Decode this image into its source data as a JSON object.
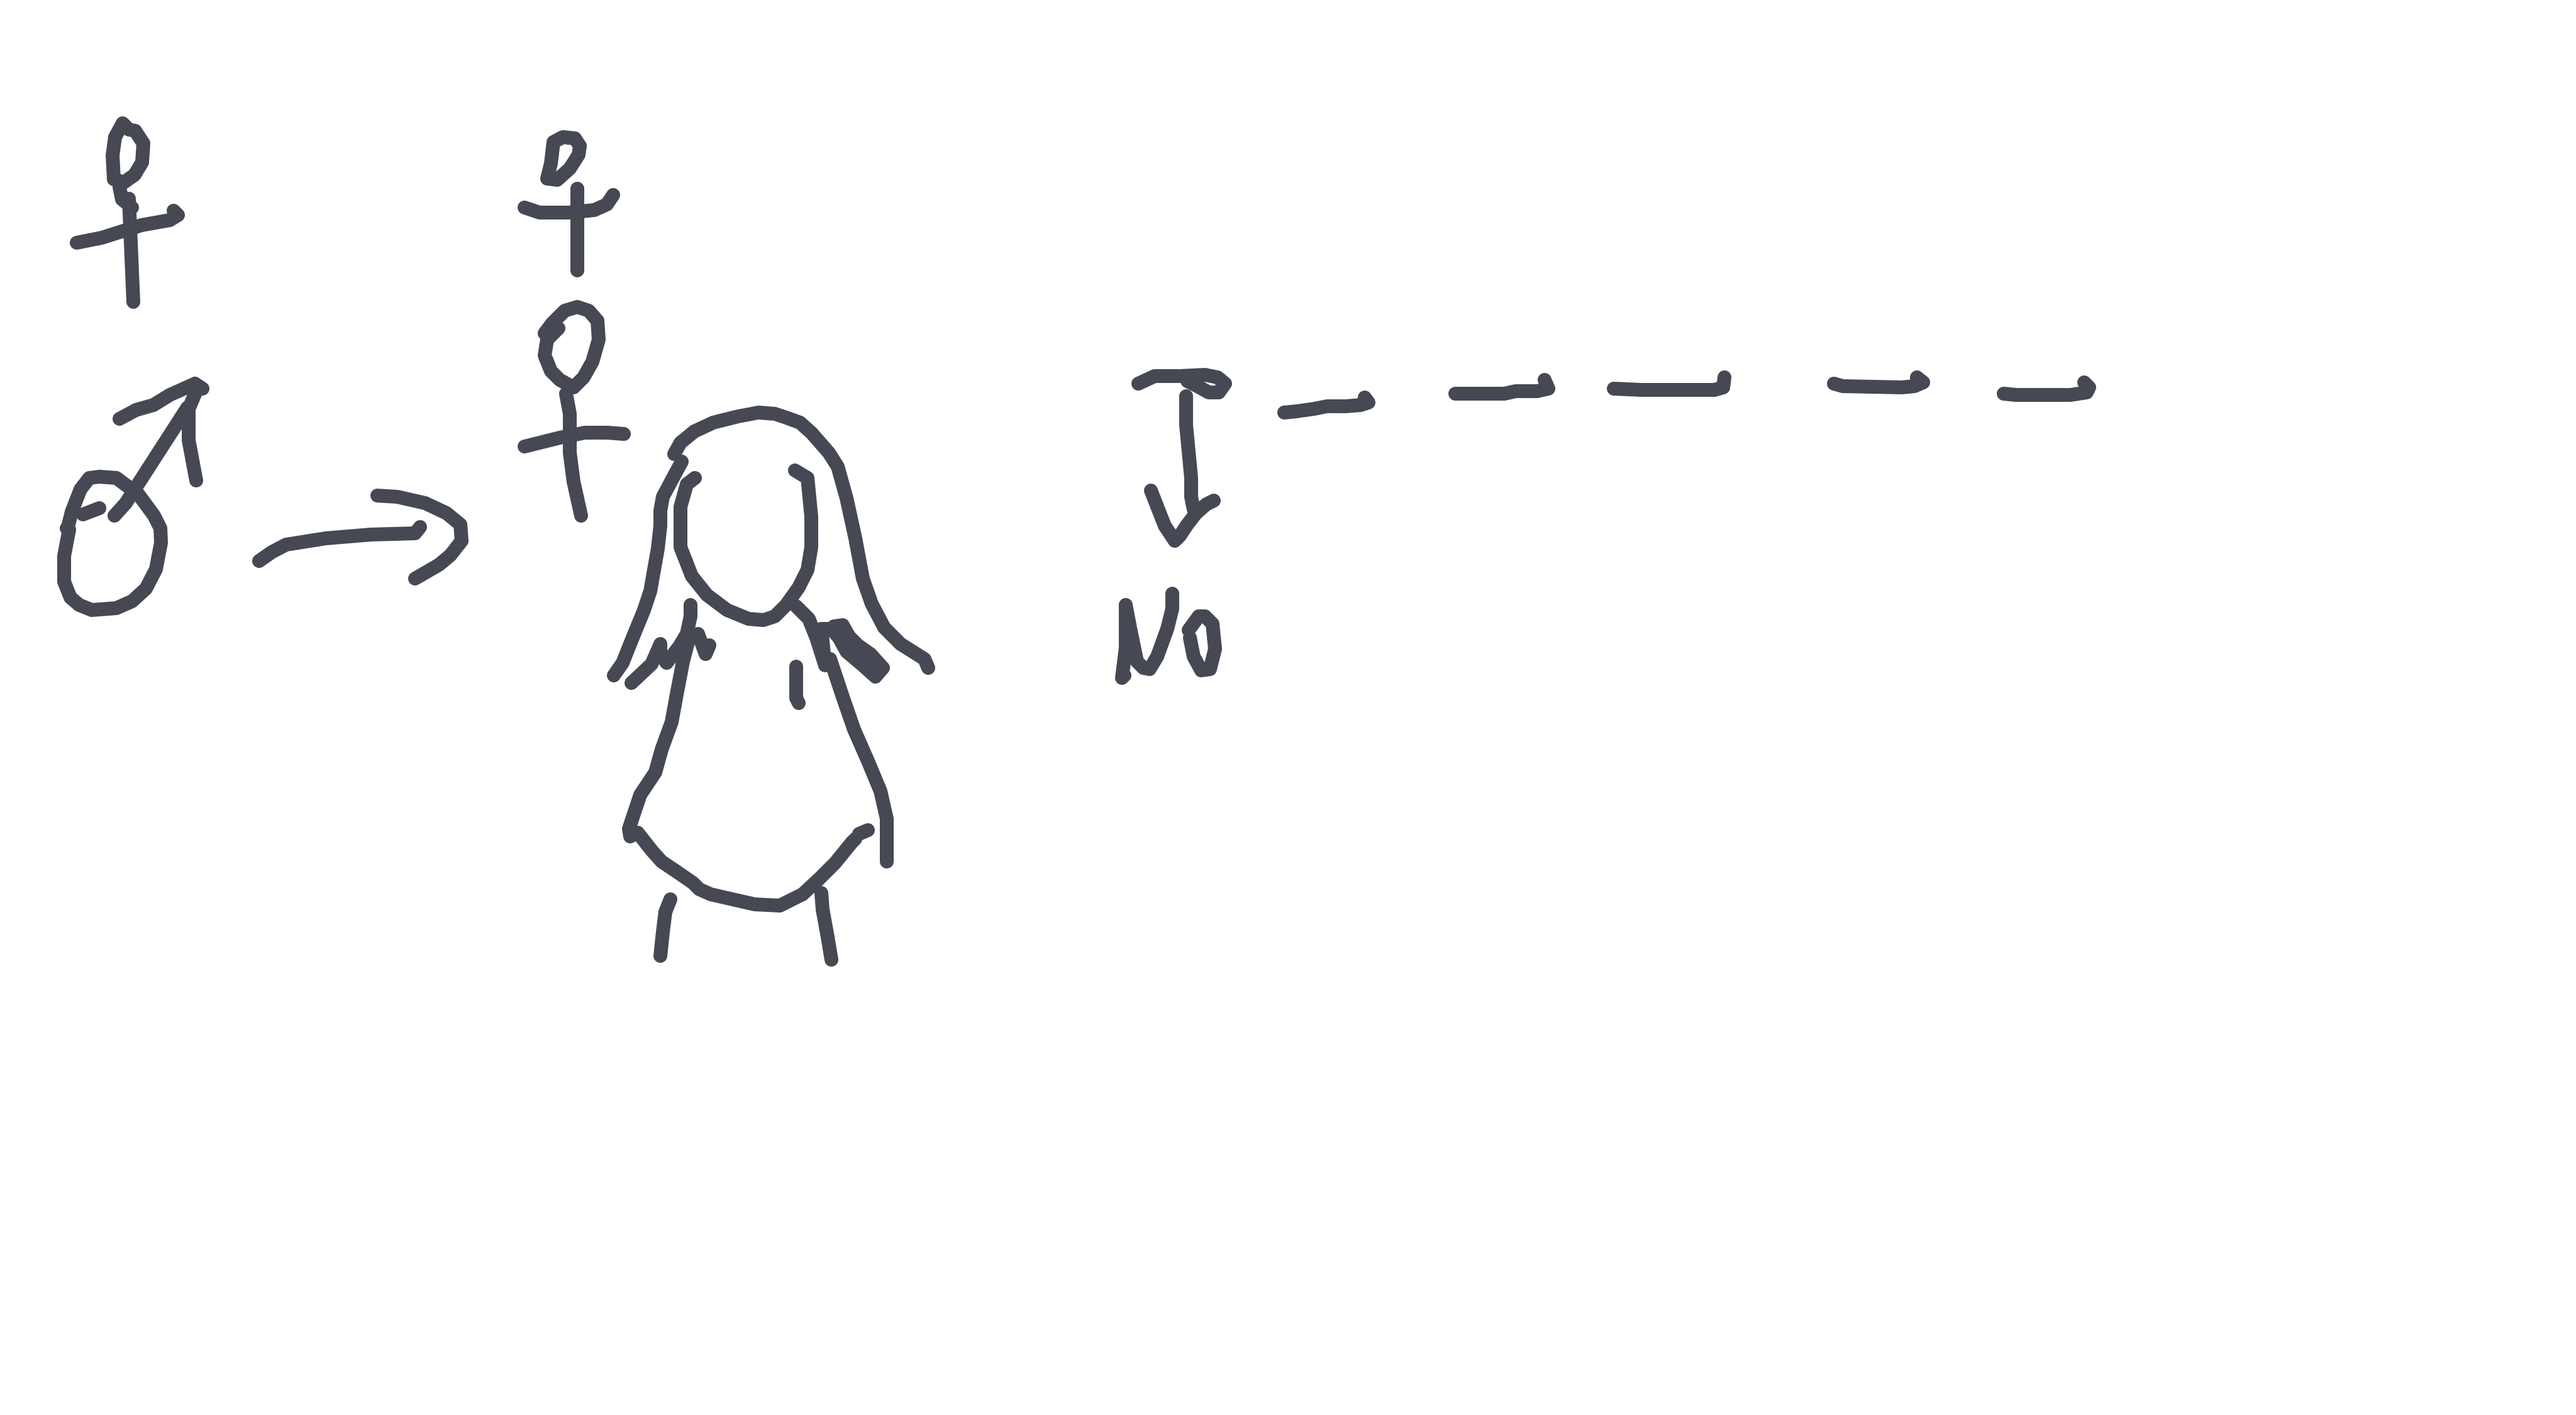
{
  "drawing": {
    "ink_color": "#464853",
    "background_color": "#ffffff",
    "symbols": [
      "female-symbol",
      "male-symbol",
      "arrow-right",
      "female-symbol-stacked",
      "girl-figure",
      "t-bar-with-dashes",
      "checkmark",
      "scribble-mark"
    ]
  }
}
